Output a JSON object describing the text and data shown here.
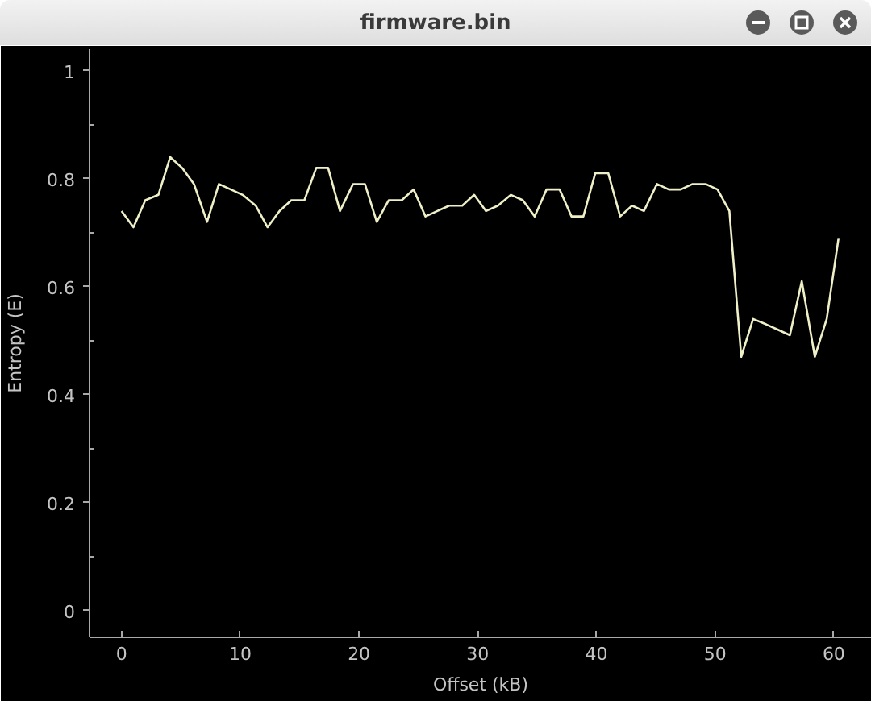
{
  "chart_data": {
    "type": "line",
    "title": "firmware.bin",
    "xlabel": "Offset (kB)",
    "ylabel": "Entropy (E)",
    "x": [
      0,
      1.0,
      2.0,
      3.1,
      4.1,
      5.1,
      6.1,
      7.2,
      8.2,
      9.2,
      10.2,
      11.3,
      12.3,
      13.3,
      14.3,
      15.4,
      16.4,
      17.4,
      18.4,
      19.5,
      20.5,
      21.5,
      22.5,
      23.6,
      24.6,
      25.6,
      26.6,
      27.6,
      28.7,
      29.7,
      30.7,
      31.7,
      32.8,
      33.8,
      34.8,
      35.8,
      36.9,
      37.9,
      38.9,
      39.9,
      41.0,
      42.0,
      43.0,
      44.0,
      45.1,
      46.1,
      47.1,
      48.1,
      49.2,
      50.2,
      51.2,
      52.2,
      53.2,
      54.3,
      55.3,
      56.3,
      57.3,
      58.4,
      59.4,
      60.4
    ],
    "series": [
      {
        "color": "#f0f0c8",
        "values": [
          0.74,
          0.71,
          0.76,
          0.77,
          0.84,
          0.82,
          0.79,
          0.72,
          0.79,
          0.78,
          0.77,
          0.75,
          0.71,
          0.74,
          0.76,
          0.76,
          0.82,
          0.82,
          0.74,
          0.79,
          0.79,
          0.72,
          0.76,
          0.76,
          0.78,
          0.73,
          0.74,
          0.75,
          0.75,
          0.77,
          0.74,
          0.75,
          0.77,
          0.76,
          0.73,
          0.78,
          0.78,
          0.73,
          0.73,
          0.81,
          0.81,
          0.73,
          0.75,
          0.74,
          0.79,
          0.78,
          0.78,
          0.79,
          0.79,
          0.78,
          0.74,
          0.47,
          0.54,
          0.53,
          0.52,
          0.51,
          0.61,
          0.47,
          0.54,
          0.69
        ]
      }
    ],
    "xlim": [
      -2.7,
      63.2
    ],
    "ylim": [
      -0.05,
      1.04
    ],
    "xticks": [
      0,
      10,
      20,
      30,
      40,
      50,
      60
    ],
    "yticks": [
      0,
      {
        "value": 0.1,
        "label": null
      },
      0.2,
      {
        "value": 0.3,
        "label": null
      },
      0.4,
      {
        "value": 0.5,
        "label": null
      },
      0.6,
      {
        "value": 0.7,
        "label": null
      },
      0.8,
      {
        "value": 0.9,
        "label": null
      },
      1
    ],
    "line_style": "solid"
  }
}
